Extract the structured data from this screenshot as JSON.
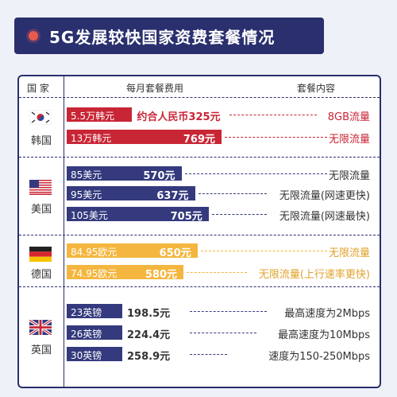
{
  "title": "5G发展较快国家资费套餐情况",
  "headers": {
    "country": "国 家",
    "fee": "每月套餐费用",
    "plan": "套餐内容"
  },
  "colors": {
    "korea": "#c82535",
    "usa": "#343a7d",
    "germany": "#f4b63e",
    "uk": "#343a7d",
    "accent": "#2a2f6e"
  },
  "chart_data": {
    "type": "bar",
    "title": "5G发展较快国家资费套餐情况",
    "unit": "元",
    "groups": [
      {
        "country": "韩国",
        "color": "#c82535",
        "rows": [
          {
            "local": "5.5万韩元",
            "rmb": "约合人民币325元",
            "value": 325,
            "plan": "8GB流量"
          },
          {
            "local": "13万韩元",
            "rmb": "769元",
            "value": 769,
            "plan": "无限流量"
          }
        ]
      },
      {
        "country": "美国",
        "color": "#343a7d",
        "rows": [
          {
            "local": "85美元",
            "rmb": "570元",
            "value": 570,
            "plan": "无限流量"
          },
          {
            "local": "95美元",
            "rmb": "637元",
            "value": 637,
            "plan": "无限流量(网速更快)"
          },
          {
            "local": "105美元",
            "rmb": "705元",
            "value": 705,
            "plan": "无限流量(网速最快)"
          }
        ]
      },
      {
        "country": "德国",
        "color": "#f4b63e",
        "rows": [
          {
            "local": "84.95欧元",
            "rmb": "650元",
            "value": 650,
            "plan": "无限流量"
          },
          {
            "local": "74.95欧元",
            "rmb": "580元",
            "value": 580,
            "plan": "无限流量(上行速率更快)"
          }
        ]
      },
      {
        "country": "英国",
        "color": "#343a7d",
        "rows": [
          {
            "local": "23英镑",
            "rmb": "198.5元",
            "value": 198.5,
            "plan": "最高速度为2Mbps"
          },
          {
            "local": "26英镑",
            "rmb": "224.4元",
            "value": 224.4,
            "plan": "最高速度为10Mbps"
          },
          {
            "local": "30英镑",
            "rmb": "258.9元",
            "value": 258.9,
            "plan": "速度为150-250Mbps"
          }
        ]
      }
    ]
  }
}
